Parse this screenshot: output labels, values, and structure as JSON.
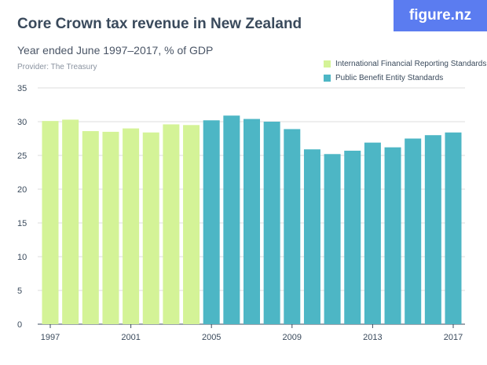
{
  "logo": "figure.nz",
  "chart_data": {
    "type": "bar",
    "title": "Core Crown tax revenue in New Zealand",
    "subtitle": "Year ended June 1997–2017, % of GDP",
    "provider": "Provider: The Treasury",
    "xlabel": "",
    "ylabel": "% of GDP",
    "ylim": [
      0,
      35
    ],
    "yticks": [
      0,
      5,
      10,
      15,
      20,
      25,
      30,
      35
    ],
    "xticks": [
      "1997",
      "2001",
      "2005",
      "2009",
      "2013",
      "2017"
    ],
    "categories": [
      "1997",
      "1998",
      "1999",
      "2000",
      "2001",
      "2002",
      "2003",
      "2004",
      "2005",
      "2006",
      "2007",
      "2008",
      "2009",
      "2010",
      "2011",
      "2012",
      "2013",
      "2014",
      "2015",
      "2016",
      "2017"
    ],
    "values": [
      30.1,
      30.3,
      28.6,
      28.5,
      29.0,
      28.4,
      29.6,
      29.5,
      30.2,
      30.9,
      30.4,
      30.0,
      28.9,
      25.9,
      25.2,
      25.7,
      26.9,
      26.2,
      27.5,
      28.0,
      28.4
    ],
    "series": [
      {
        "name": "International Financial Reporting Standards",
        "color": "#d4f397",
        "years": [
          "1997",
          "1998",
          "1999",
          "2000",
          "2001",
          "2002",
          "2003",
          "2004"
        ]
      },
      {
        "name": "Public Benefit Entity Standards",
        "color": "#4db6c5",
        "years": [
          "2005",
          "2006",
          "2007",
          "2008",
          "2009",
          "2010",
          "2011",
          "2012",
          "2013",
          "2014",
          "2015",
          "2016",
          "2017"
        ]
      }
    ],
    "grid": true,
    "legend_position": "top-right"
  }
}
